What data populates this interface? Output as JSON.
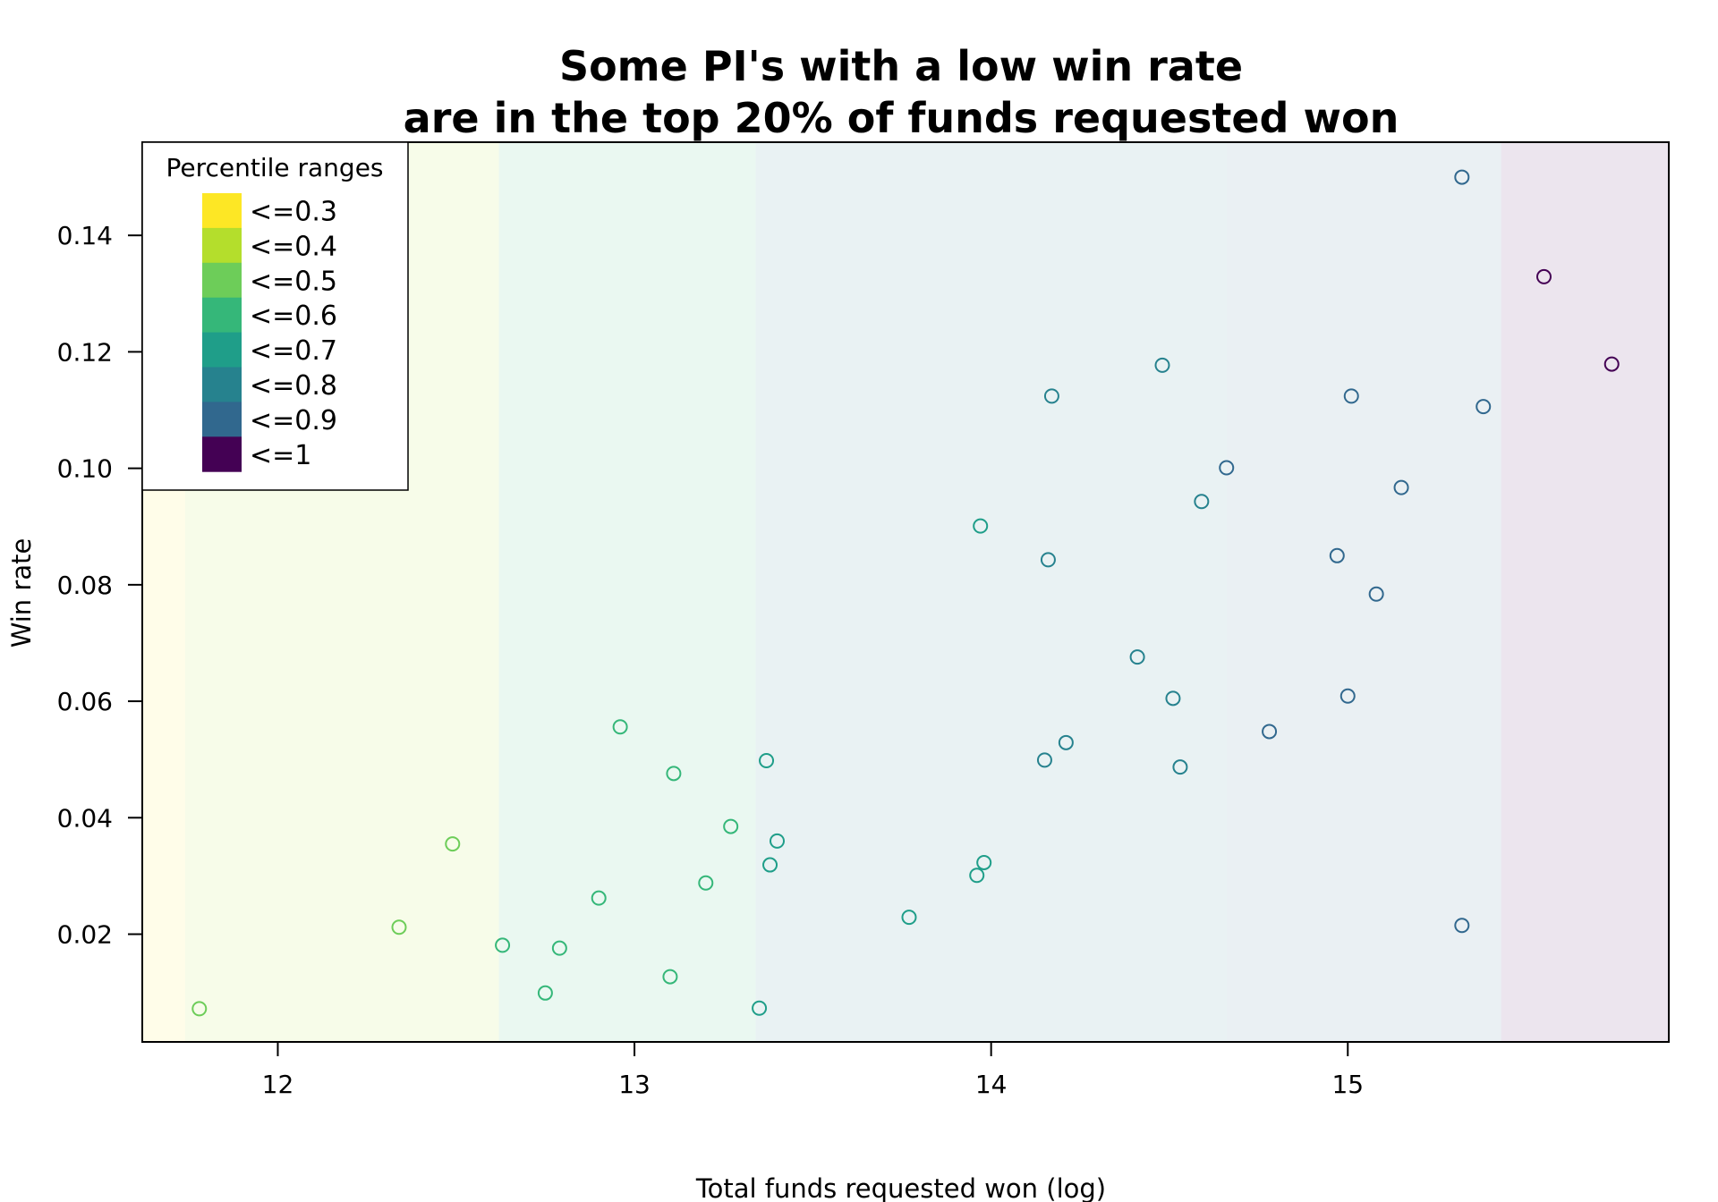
{
  "chart_data": {
    "type": "scatter",
    "title_line1": "Some PI's with a low win rate",
    "title_line2": "are in the top 20% of funds requested won",
    "xlabel": "Total funds requested won (log)",
    "ylabel": "Win rate",
    "xlim": [
      11.62,
      15.9
    ],
    "ylim": [
      0.0015,
      0.156
    ],
    "x_ticks": [
      12,
      13,
      14,
      15
    ],
    "x_tick_labels": [
      "12",
      "13",
      "14",
      "15"
    ],
    "y_ticks": [
      0.02,
      0.04,
      0.06,
      0.08,
      0.1,
      0.12,
      0.14
    ],
    "y_tick_labels": [
      "0.02",
      "0.04",
      "0.06",
      "0.08",
      "0.10",
      "0.12",
      "0.14"
    ],
    "grid": false,
    "legend": {
      "title": "Percentile ranges",
      "position": "top-left",
      "entries": [
        {
          "label": "<=0.3",
          "color": "#FDE725"
        },
        {
          "label": "<=0.4",
          "color": "#B4DE2C"
        },
        {
          "label": "<=0.5",
          "color": "#6DCD59"
        },
        {
          "label": "<=0.6",
          "color": "#35B779"
        },
        {
          "label": "<=0.7",
          "color": "#1F9E89"
        },
        {
          "label": "<=0.8",
          "color": "#26828E"
        },
        {
          "label": "<=0.9",
          "color": "#31688E"
        },
        {
          "label": "<=1",
          "color": "#440154"
        }
      ]
    },
    "background_bands": [
      {
        "x_from": 11.62,
        "x_to": 11.74,
        "color": "#FDE725"
      },
      {
        "x_from": 11.74,
        "x_to": 12.62,
        "color": "#B4DE2C"
      },
      {
        "x_from": 12.62,
        "x_to": 13.34,
        "color": "#35B779"
      },
      {
        "x_from": 13.34,
        "x_to": 14.66,
        "color": "#26828E"
      },
      {
        "x_from": 14.66,
        "x_to": 15.43,
        "color": "#31688E"
      },
      {
        "x_from": 15.43,
        "x_to": 15.9,
        "color": "#440154"
      }
    ],
    "series": [
      {
        "color": "#6DCD59",
        "x": [
          11.78,
          12.34,
          12.49
        ],
        "y": [
          0.0072,
          0.0212,
          0.0355
        ]
      },
      {
        "color": "#35B779",
        "x": [
          12.63,
          12.75,
          12.79,
          12.9,
          12.96,
          13.1,
          13.11,
          13.2,
          13.27
        ],
        "y": [
          0.0181,
          0.0099,
          0.0176,
          0.0262,
          0.0556,
          0.0127,
          0.0476,
          0.0288,
          0.0385
        ]
      },
      {
        "color": "#1F9E89",
        "x": [
          13.35,
          13.37,
          13.38,
          13.4,
          13.77,
          13.96,
          13.97,
          13.98
        ],
        "y": [
          0.0073,
          0.0498,
          0.0319,
          0.036,
          0.0229,
          0.0301,
          0.0901,
          0.0323
        ]
      },
      {
        "color": "#26828E",
        "x": [
          14.15,
          14.16,
          14.17,
          14.21,
          14.41,
          14.48,
          14.51,
          14.53,
          14.59
        ],
        "y": [
          0.0499,
          0.0843,
          0.1124,
          0.0529,
          0.0676,
          0.1177,
          0.0605,
          0.0487,
          0.0943
        ]
      },
      {
        "color": "#31688E",
        "x": [
          14.66,
          14.78,
          14.97,
          15.0,
          15.01,
          15.08,
          15.15,
          15.32,
          15.32,
          15.38
        ],
        "y": [
          0.1001,
          0.0548,
          0.085,
          0.0609,
          0.1124,
          0.0784,
          0.0967,
          0.15,
          0.0215,
          0.1106
        ]
      },
      {
        "color": "#440154",
        "x": [
          15.55,
          15.74
        ],
        "y": [
          0.1329,
          0.1179
        ]
      }
    ]
  }
}
